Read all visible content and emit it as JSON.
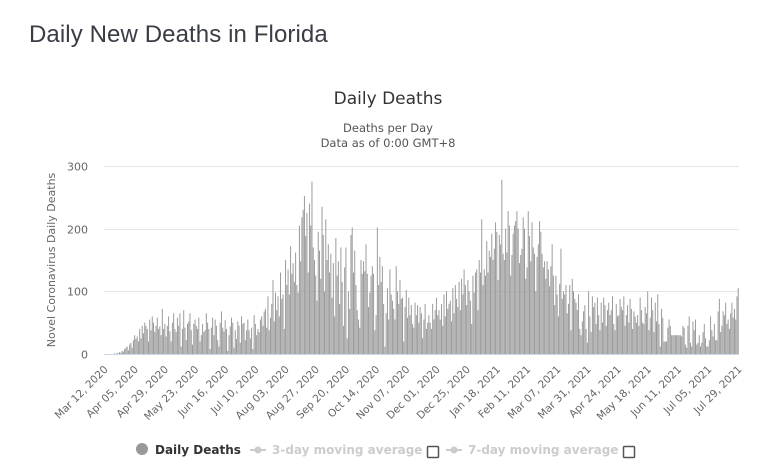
{
  "page": {
    "title": "Daily New Deaths in Florida"
  },
  "chart_data": {
    "type": "bar",
    "title": "Daily Deaths",
    "subtitle_lines": [
      "Deaths per Day",
      "Data as of 0:00 GMT+8"
    ],
    "xlabel": "",
    "ylabel": "Novel Coronavirus Daily Deaths",
    "ylim": [
      0,
      300
    ],
    "yticks": [
      0,
      100,
      200,
      300
    ],
    "grid": true,
    "bar_color": "#999999",
    "start_date": "2020-03-12",
    "xtick_labels": [
      "Mar 12, 2020",
      "Apr 05, 2020",
      "Apr 29, 2020",
      "May 23, 2020",
      "Jun 16, 2020",
      "Jul 10, 2020",
      "Aug 03, 2020",
      "Aug 27, 2020",
      "Sep 20, 2020",
      "Oct 14, 2020",
      "Nov 07, 2020",
      "Dec 01, 2020",
      "Dec 25, 2020",
      "Jan 18, 2021",
      "Feb 11, 2021",
      "Mar 07, 2021",
      "Mar 31, 2021",
      "Apr 24, 2021",
      "May 18, 2021",
      "Jun 11, 2021",
      "Jul 05, 2021",
      "Jul 29, 2021"
    ],
    "xtick_interval_days": 24,
    "legend": {
      "placement": "bottom-center",
      "items": [
        {
          "label": "Daily Deaths",
          "visible": true,
          "icon": "circle",
          "color": "#999999"
        },
        {
          "label": "3-day moving average",
          "visible": false,
          "icon": "line-marker",
          "color": "#cccccc",
          "checkbox": false
        },
        {
          "label": "7-day moving average",
          "visible": false,
          "icon": "line-marker",
          "color": "#cccccc",
          "checkbox": false
        }
      ]
    },
    "values": [
      0,
      0,
      0,
      0,
      0,
      0,
      0,
      0,
      1,
      0,
      2,
      1,
      3,
      2,
      5,
      4,
      8,
      10,
      12,
      6,
      15,
      18,
      10,
      22,
      30,
      24,
      28,
      20,
      40,
      25,
      45,
      33,
      50,
      45,
      40,
      20,
      55,
      38,
      60,
      50,
      35,
      45,
      58,
      40,
      44,
      30,
      72,
      40,
      48,
      28,
      45,
      60,
      36,
      20,
      50,
      65,
      40,
      35,
      58,
      45,
      65,
      12,
      40,
      70,
      42,
      22,
      48,
      52,
      65,
      38,
      15,
      48,
      55,
      45,
      40,
      58,
      20,
      30,
      48,
      35,
      38,
      65,
      50,
      40,
      8,
      42,
      58,
      30,
      55,
      45,
      22,
      12,
      50,
      68,
      42,
      36,
      54,
      40,
      5,
      30,
      44,
      58,
      50,
      10,
      38,
      24,
      52,
      45,
      18,
      60,
      48,
      50,
      22,
      38,
      55,
      38,
      25,
      42,
      8,
      62,
      48,
      30,
      40,
      35,
      55,
      60,
      45,
      68,
      72,
      42,
      92,
      38,
      58,
      80,
      118,
      52,
      98,
      70,
      92,
      60,
      130,
      88,
      95,
      40,
      150,
      110,
      135,
      95,
      172,
      128,
      145,
      115,
      162,
      110,
      98,
      205,
      148,
      218,
      230,
      252,
      188,
      225,
      130,
      240,
      205,
      275,
      170,
      150,
      125,
      85,
      195,
      165,
      120,
      235,
      190,
      100,
      215,
      150,
      175,
      130,
      160,
      90,
      145,
      60,
      185,
      125,
      148,
      80,
      170,
      115,
      45,
      138,
      170,
      25,
      100,
      72,
      190,
      202,
      130,
      165,
      110,
      70,
      55,
      42,
      150,
      128,
      148,
      132,
      175,
      128,
      75,
      98,
      125,
      140,
      128,
      38,
      62,
      202,
      110,
      155,
      115,
      140,
      80,
      12,
      65,
      105,
      55,
      135,
      95,
      85,
      72,
      55,
      140,
      100,
      80,
      118,
      88,
      90,
      20,
      75,
      102,
      58,
      90,
      62,
      78,
      48,
      42,
      82,
      62,
      78,
      50,
      75,
      65,
      25,
      55,
      80,
      40,
      50,
      62,
      50,
      40,
      80,
      55,
      70,
      90,
      62,
      70,
      55,
      80,
      45,
      95,
      60,
      100,
      72,
      80,
      85,
      52,
      105,
      65,
      110,
      88,
      75,
      115,
      70,
      120,
      95,
      135,
      110,
      78,
      118,
      100,
      85,
      48,
      125,
      98,
      130,
      135,
      70,
      150,
      130,
      215,
      110,
      135,
      125,
      180,
      130,
      165,
      155,
      192,
      150,
      168,
      210,
      195,
      118,
      190,
      175,
      278,
      160,
      150,
      200,
      162,
      228,
      205,
      125,
      158,
      192,
      205,
      212,
      228,
      200,
      145,
      158,
      168,
      218,
      200,
      120,
      138,
      228,
      188,
      148,
      210,
      170,
      160,
      100,
      155,
      175,
      212,
      195,
      160,
      138,
      148,
      120,
      148,
      135,
      108,
      140,
      175,
      125,
      78,
      125,
      95,
      60,
      112,
      168,
      88,
      100,
      95,
      110,
      65,
      80,
      110,
      38,
      120,
      100,
      88,
      82,
      70,
      95,
      40,
      30,
      52,
      68,
      78,
      40,
      18,
      100,
      60,
      35,
      92,
      75,
      82,
      48,
      90,
      62,
      38,
      82,
      50,
      90,
      78,
      45,
      70,
      82,
      62,
      70,
      92,
      48,
      38,
      80,
      60,
      62,
      88,
      75,
      70,
      92,
      45,
      62,
      78,
      50,
      88,
      72,
      40,
      68,
      60,
      50,
      62,
      45,
      90,
      70,
      50,
      48,
      75,
      65,
      100,
      38,
      58,
      90,
      70,
      35,
      82,
      52,
      95,
      48,
      12,
      72,
      58,
      20,
      20,
      20,
      42,
      55,
      45,
      30,
      30,
      30,
      30,
      30,
      30,
      30,
      30,
      28,
      45,
      42,
      15,
      10,
      45,
      60,
      18,
      12,
      52,
      38,
      55,
      15,
      18,
      30,
      12,
      18,
      35,
      48,
      25,
      12,
      12,
      22,
      60,
      38,
      28,
      48,
      22,
      22,
      68,
      88,
      35,
      45,
      68,
      62,
      82,
      48,
      55,
      40,
      65,
      82,
      58,
      72,
      55,
      92,
      105
    ]
  }
}
